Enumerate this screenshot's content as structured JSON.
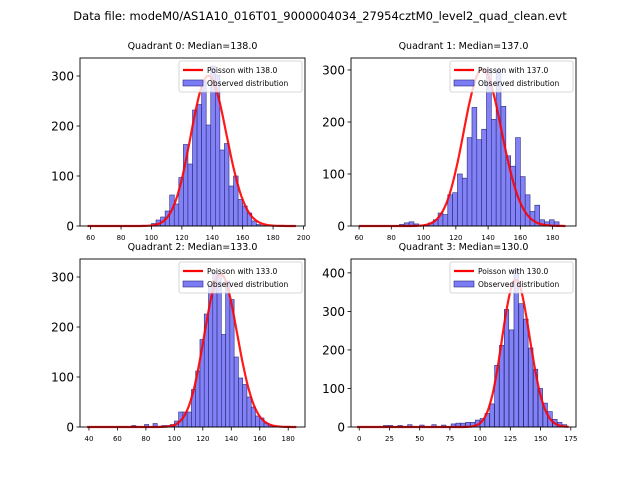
{
  "suptitle": "Data file: modeM0/AS1A10_016T01_9000004034_27954cztM0_level2_quad_clean.evt",
  "colors": {
    "bar_fill": "#7b7bf5",
    "bar_edge": "#2a2a7a",
    "curve": "#ff0000"
  },
  "chart_data": [
    {
      "type": "bar",
      "title": "Quadrant 0: Median=138.0",
      "legend": [
        "Poisson with 138.0",
        "Observed distribution"
      ],
      "legend_position": "top-right",
      "xlim": [
        53,
        201
      ],
      "ylim": [
        0,
        336
      ],
      "xticks": [
        60,
        80,
        100,
        120,
        140,
        160,
        180,
        200
      ],
      "yticks": [
        0,
        100,
        200,
        300
      ],
      "bin_width": 3,
      "bins": [
        100,
        103,
        106,
        109,
        112,
        115,
        118,
        121,
        124,
        127,
        130,
        133,
        136,
        139,
        142,
        145,
        148,
        151,
        154,
        157,
        160,
        163,
        166,
        169,
        172
      ],
      "values": [
        5,
        12,
        18,
        30,
        62,
        44,
        97,
        163,
        124,
        232,
        243,
        290,
        202,
        320,
        302,
        152,
        165,
        80,
        100,
        53,
        40,
        26,
        10,
        3,
        1
      ],
      "curve_mean": 138.0,
      "curve_scale": 3
    },
    {
      "type": "bar",
      "title": "Quadrant 1: Median=137.0",
      "legend": [
        "Poisson with 137.0",
        "Observed distribution"
      ],
      "legend_position": "top-right",
      "xlim": [
        55,
        194.5
      ],
      "ylim": [
        0,
        323
      ],
      "xticks": [
        60,
        80,
        100,
        120,
        140,
        160,
        180
      ],
      "yticks": [
        0,
        100,
        200,
        300
      ],
      "bin_width": 3,
      "bins": [
        85,
        88,
        91,
        94,
        97,
        100,
        103,
        106,
        109,
        112,
        115,
        118,
        121,
        124,
        127,
        130,
        133,
        136,
        139,
        142,
        145,
        148,
        151,
        154,
        157,
        160,
        163,
        166,
        169,
        172,
        175,
        178,
        181
      ],
      "values": [
        3,
        6,
        8,
        4,
        0,
        2,
        6,
        12,
        25,
        22,
        60,
        64,
        100,
        92,
        170,
        228,
        166,
        186,
        300,
        205,
        300,
        230,
        135,
        115,
        170,
        95,
        60,
        28,
        40,
        12,
        8,
        12,
        8
      ],
      "curve_mean": 137.0,
      "curve_scale": 3
    },
    {
      "type": "bar",
      "title": "Quadrant 2: Median=133.0",
      "legend": [
        "Poisson with 133.0",
        "Observed distribution"
      ],
      "legend_position": "top-right",
      "xlim": [
        33.7,
        191.8
      ],
      "ylim": [
        0,
        336
      ],
      "xticks": [
        40,
        60,
        80,
        100,
        120,
        140,
        160,
        180
      ],
      "yticks": [
        0,
        100,
        200,
        300
      ],
      "bin_width": 3,
      "bins": [
        70,
        79,
        85,
        91,
        94,
        97,
        100,
        103,
        106,
        109,
        112,
        115,
        118,
        121,
        124,
        127,
        130,
        133,
        136,
        139,
        142,
        145,
        148,
        151,
        154,
        157,
        160,
        163,
        166,
        169
      ],
      "values": [
        3,
        5,
        7,
        3,
        3,
        5,
        12,
        30,
        30,
        30,
        75,
        112,
        175,
        226,
        285,
        310,
        305,
        185,
        292,
        255,
        140,
        98,
        85,
        60,
        40,
        22,
        18,
        8,
        4,
        1
      ],
      "curve_mean": 133.0,
      "curve_scale": 3
    },
    {
      "type": "bar",
      "title": "Quadrant 3: Median=130.0",
      "legend": [
        "Poisson with 130.0",
        "Observed distribution"
      ],
      "legend_position": "top-right",
      "xlim": [
        -6.8,
        179.3
      ],
      "ylim": [
        0,
        436
      ],
      "xticks": [
        0,
        25,
        50,
        75,
        100,
        125,
        150,
        175
      ],
      "yticks": [
        0,
        100,
        200,
        300,
        400
      ],
      "bin_width": 3.7,
      "bins": [
        20,
        24,
        32,
        40,
        50,
        60,
        68,
        76,
        80,
        84,
        88,
        92,
        96,
        100,
        104,
        108,
        112,
        116,
        120,
        124,
        128,
        132,
        136,
        140,
        144,
        148,
        152,
        156,
        160,
        164,
        168
      ],
      "values": [
        4,
        4,
        4,
        6,
        5,
        6,
        5,
        8,
        10,
        10,
        12,
        12,
        18,
        22,
        35,
        60,
        160,
        212,
        305,
        252,
        410,
        320,
        280,
        205,
        150,
        100,
        62,
        40,
        20,
        12,
        6
      ],
      "curve_mean": 130.0,
      "curve_scale": 3.7
    }
  ]
}
